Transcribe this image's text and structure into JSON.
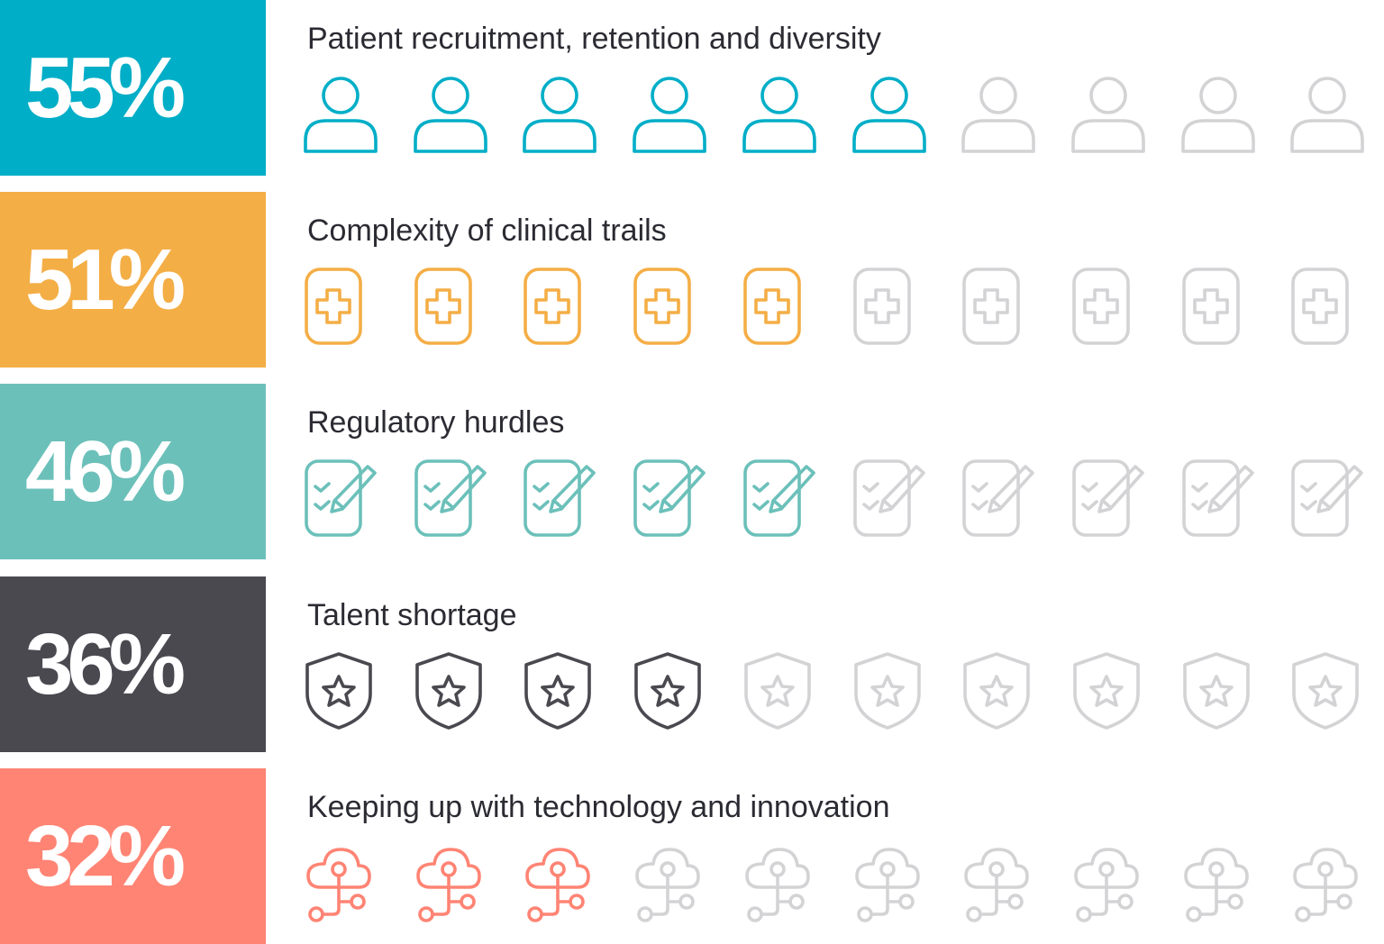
{
  "chart_data": {
    "type": "pictograph",
    "total_icons": 10,
    "inactive_color": "#d3d3d5",
    "rows": [
      {
        "label": "Patient recruitment, retention and diversity",
        "value": "55%",
        "filled_icons": 6,
        "icon": "person-icon",
        "color": "#00aec7"
      },
      {
        "label": "Complexity of clinical trails",
        "value": "51%",
        "filled_icons": 5,
        "icon": "medical-cross-icon",
        "color": "#f4ae46"
      },
      {
        "label": "Regulatory hurdles",
        "value": "46%",
        "filled_icons": 5,
        "icon": "checklist-pencil-icon",
        "color": "#6cc0ba"
      },
      {
        "label": "Talent shortage",
        "value": "36%",
        "filled_icons": 4,
        "icon": "shield-star-icon",
        "color": "#4a4950"
      },
      {
        "label": "Keeping up with technology and innovation",
        "value": "32%",
        "filled_icons": 3,
        "icon": "cloud-network-icon",
        "color": "#ff8474"
      }
    ]
  }
}
